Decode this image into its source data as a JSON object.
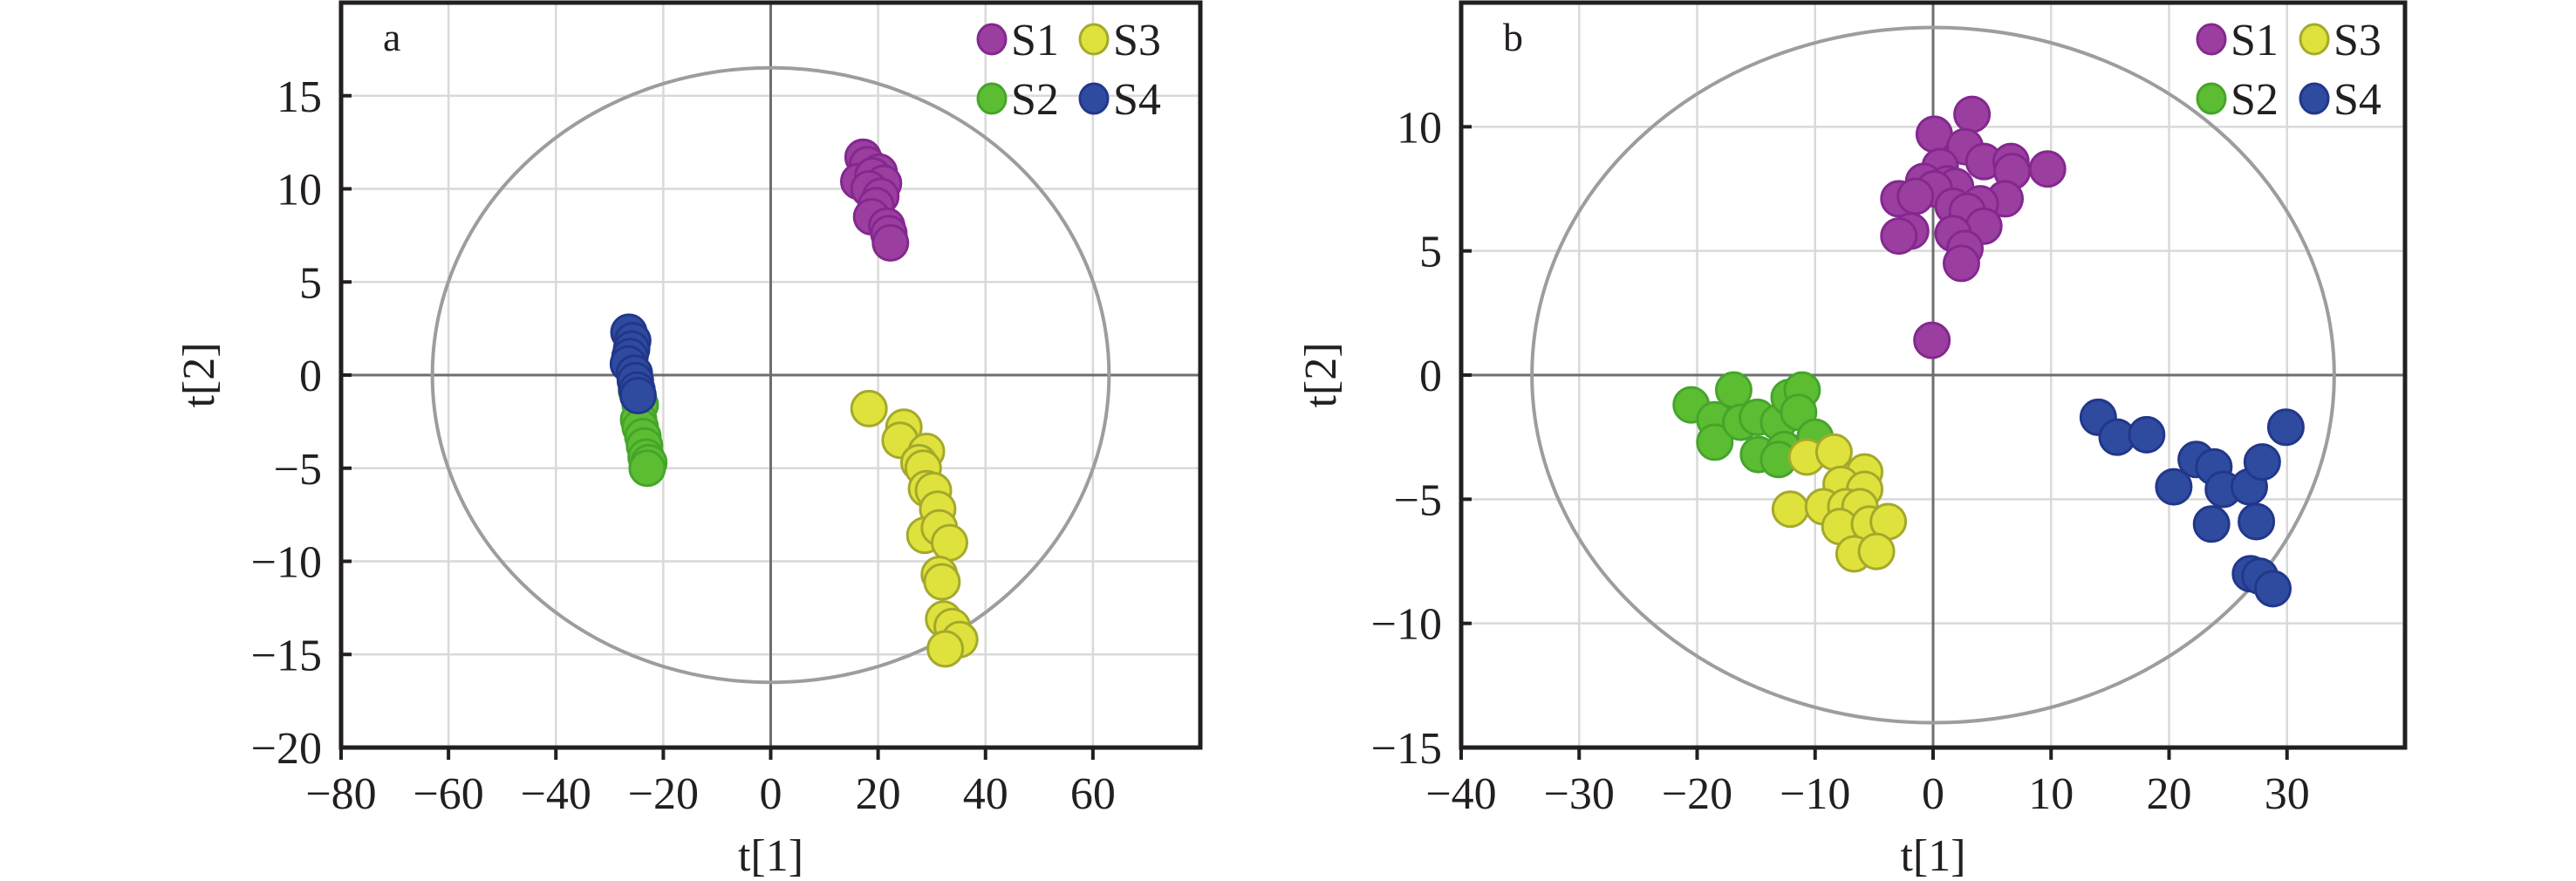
{
  "chart_data": [
    {
      "type": "scatter",
      "panel_label": "a",
      "title": "",
      "xlabel": "t[1]",
      "ylabel": "t[2]",
      "xlim": [
        -80,
        80
      ],
      "ylim": [
        -20,
        20
      ],
      "xticks": [
        -80,
        -60,
        -40,
        -20,
        0,
        20,
        40,
        60
      ],
      "yticks": [
        -20,
        -15,
        -10,
        -5,
        0,
        5,
        10,
        15
      ],
      "xtick_labels": [
        "−80",
        "−60",
        "−40",
        "−20",
        "0",
        "20",
        "40",
        "60"
      ],
      "ytick_labels": [
        "−20",
        "−15",
        "−10",
        "−5",
        "0",
        "5",
        "10",
        "15"
      ],
      "grid": true,
      "legend_position": "top-right",
      "confidence_ellipse": {
        "center": [
          0,
          0
        ],
        "semi_axes": [
          63,
          16.5
        ]
      },
      "series": [
        {
          "name": "S1",
          "color": "#9a3fa0",
          "edge": "#84288f",
          "points": [
            [
              17.2,
              11.7
            ],
            [
              18.0,
              11.3
            ],
            [
              20.2,
              10.9
            ],
            [
              16.4,
              10.4
            ],
            [
              19.0,
              10.7
            ],
            [
              21.0,
              10.3
            ],
            [
              18.3,
              10.0
            ],
            [
              20.5,
              9.6
            ],
            [
              19.6,
              9.1
            ],
            [
              18.8,
              8.5
            ],
            [
              21.6,
              8.0
            ],
            [
              22.0,
              7.6
            ],
            [
              22.3,
              7.1
            ]
          ]
        },
        {
          "name": "S2",
          "color": "#5cbd33",
          "edge": "#45a52a",
          "points": [
            [
              -25.0,
              -0.8
            ],
            [
              -24.3,
              -1.6
            ],
            [
              -24.6,
              -2.4
            ],
            [
              -24.3,
              -2.8
            ],
            [
              -23.8,
              -3.3
            ],
            [
              -23.5,
              -3.8
            ],
            [
              -23.2,
              -4.4
            ],
            [
              -22.7,
              -4.7
            ],
            [
              -23.0,
              -5.0
            ]
          ]
        },
        {
          "name": "S3",
          "color": "#dfe23c",
          "edge": "#a4a92b",
          "points": [
            [
              18.3,
              -1.8
            ],
            [
              24.8,
              -2.8
            ],
            [
              24.1,
              -3.5
            ],
            [
              29.0,
              -4.1
            ],
            [
              27.6,
              -4.7
            ],
            [
              28.4,
              -5.0
            ],
            [
              29.0,
              -6.1
            ],
            [
              30.3,
              -6.2
            ],
            [
              31.1,
              -7.2
            ],
            [
              28.7,
              -8.6
            ],
            [
              31.4,
              -8.2
            ],
            [
              33.3,
              -9.0
            ],
            [
              31.4,
              -10.7
            ],
            [
              31.9,
              -11.1
            ],
            [
              32.2,
              -13.1
            ],
            [
              33.8,
              -13.5
            ],
            [
              35.2,
              -14.2
            ],
            [
              32.5,
              -14.7
            ]
          ]
        },
        {
          "name": "S4",
          "color": "#2e4b9f",
          "edge": "#22378a",
          "points": [
            [
              -26.4,
              2.3
            ],
            [
              -25.7,
              1.85
            ],
            [
              -25.9,
              1.4
            ],
            [
              -26.2,
              1.0
            ],
            [
              -26.5,
              0.6
            ],
            [
              -25.4,
              0.1
            ],
            [
              -25.2,
              -0.3
            ],
            [
              -24.9,
              -0.8
            ],
            [
              -24.7,
              -1.1
            ]
          ]
        }
      ]
    },
    {
      "type": "scatter",
      "panel_label": "b",
      "title": "",
      "xlabel": "t[1]",
      "ylabel": "t[2]",
      "xlim": [
        -40,
        40
      ],
      "ylim": [
        -15,
        15
      ],
      "xticks": [
        -40,
        -30,
        -20,
        -10,
        0,
        10,
        20,
        30
      ],
      "yticks": [
        -15,
        -10,
        -5,
        0,
        5,
        10
      ],
      "xtick_labels": [
        "−40",
        "−30",
        "−20",
        "−10",
        "0",
        "10",
        "20",
        "30"
      ],
      "ytick_labels": [
        "−15",
        "−10",
        "−5",
        "0",
        "5",
        "10"
      ],
      "grid": true,
      "legend_position": "top-right",
      "confidence_ellipse": {
        "center": [
          0,
          0
        ],
        "semi_axes": [
          34,
          14
        ]
      },
      "series": [
        {
          "name": "S1",
          "color": "#9a3fa0",
          "edge": "#84288f",
          "points": [
            [
              3.3,
              10.5
            ],
            [
              0.1,
              9.7
            ],
            [
              2.7,
              9.2
            ],
            [
              4.3,
              8.6
            ],
            [
              6.6,
              8.6
            ],
            [
              6.7,
              8.2
            ],
            [
              9.7,
              8.3
            ],
            [
              0.6,
              8.4
            ],
            [
              -0.8,
              7.8
            ],
            [
              1.2,
              7.7
            ],
            [
              1.9,
              7.6
            ],
            [
              0.1,
              7.5
            ],
            [
              -2.9,
              7.1
            ],
            [
              -1.5,
              7.2
            ],
            [
              6.1,
              7.1
            ],
            [
              4.0,
              6.9
            ],
            [
              1.7,
              6.8
            ],
            [
              2.9,
              6.6
            ],
            [
              4.3,
              6.0
            ],
            [
              1.7,
              5.7
            ],
            [
              -1.9,
              5.8
            ],
            [
              -2.9,
              5.6
            ],
            [
              2.7,
              5.1
            ],
            [
              2.4,
              4.5
            ],
            [
              -0.1,
              1.4
            ]
          ]
        },
        {
          "name": "S2",
          "color": "#5cbd33",
          "edge": "#45a52a",
          "points": [
            [
              -20.5,
              -1.2
            ],
            [
              -16.9,
              -0.6
            ],
            [
              -18.5,
              -1.8
            ],
            [
              -18.5,
              -2.7
            ],
            [
              -16.3,
              -1.9
            ],
            [
              -14.9,
              -1.7
            ],
            [
              -14.8,
              -3.2
            ],
            [
              -13.1,
              -1.9
            ],
            [
              -12.2,
              -0.9
            ],
            [
              -11.1,
              -0.6
            ],
            [
              -11.4,
              -1.5
            ],
            [
              -12.6,
              -3.0
            ],
            [
              -13.1,
              -3.4
            ],
            [
              -10.0,
              -2.5
            ]
          ]
        },
        {
          "name": "S3",
          "color": "#dfe23c",
          "edge": "#a4a92b",
          "points": [
            [
              -10.7,
              -3.3
            ],
            [
              -8.4,
              -3.1
            ],
            [
              -5.8,
              -3.9
            ],
            [
              -7.8,
              -4.4
            ],
            [
              -5.8,
              -4.6
            ],
            [
              -12.1,
              -5.4
            ],
            [
              -9.3,
              -5.3
            ],
            [
              -7.4,
              -5.3
            ],
            [
              -6.2,
              -5.3
            ],
            [
              -7.9,
              -6.1
            ],
            [
              -5.4,
              -6.0
            ],
            [
              -3.8,
              -5.9
            ],
            [
              -6.7,
              -7.2
            ],
            [
              -4.8,
              -7.1
            ]
          ]
        },
        {
          "name": "S4",
          "color": "#2e4b9f",
          "edge": "#22378a",
          "points": [
            [
              14.0,
              -1.7
            ],
            [
              15.6,
              -2.5
            ],
            [
              18.1,
              -2.4
            ],
            [
              22.3,
              -3.4
            ],
            [
              23.8,
              -3.7
            ],
            [
              20.4,
              -4.5
            ],
            [
              24.6,
              -4.6
            ],
            [
              26.8,
              -4.5
            ],
            [
              27.9,
              -3.5
            ],
            [
              29.9,
              -2.1
            ],
            [
              23.6,
              -6.0
            ],
            [
              27.4,
              -5.9
            ],
            [
              26.9,
              -8.0
            ],
            [
              27.7,
              -8.1
            ],
            [
              28.8,
              -8.6
            ]
          ]
        }
      ]
    }
  ],
  "legend": {
    "order": [
      "S1",
      "S3",
      "S2",
      "S4"
    ]
  }
}
